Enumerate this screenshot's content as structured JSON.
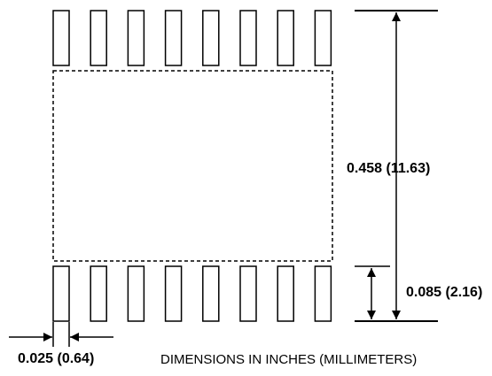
{
  "dimensions": {
    "total_length": "0.458 (11.63)",
    "pad_length": "0.085 (2.16)",
    "pad_width": "0.025 (0.64)"
  },
  "note": "DIMENSIONS IN INCHES (MILLIMETERS)",
  "pads_per_row": 8
}
